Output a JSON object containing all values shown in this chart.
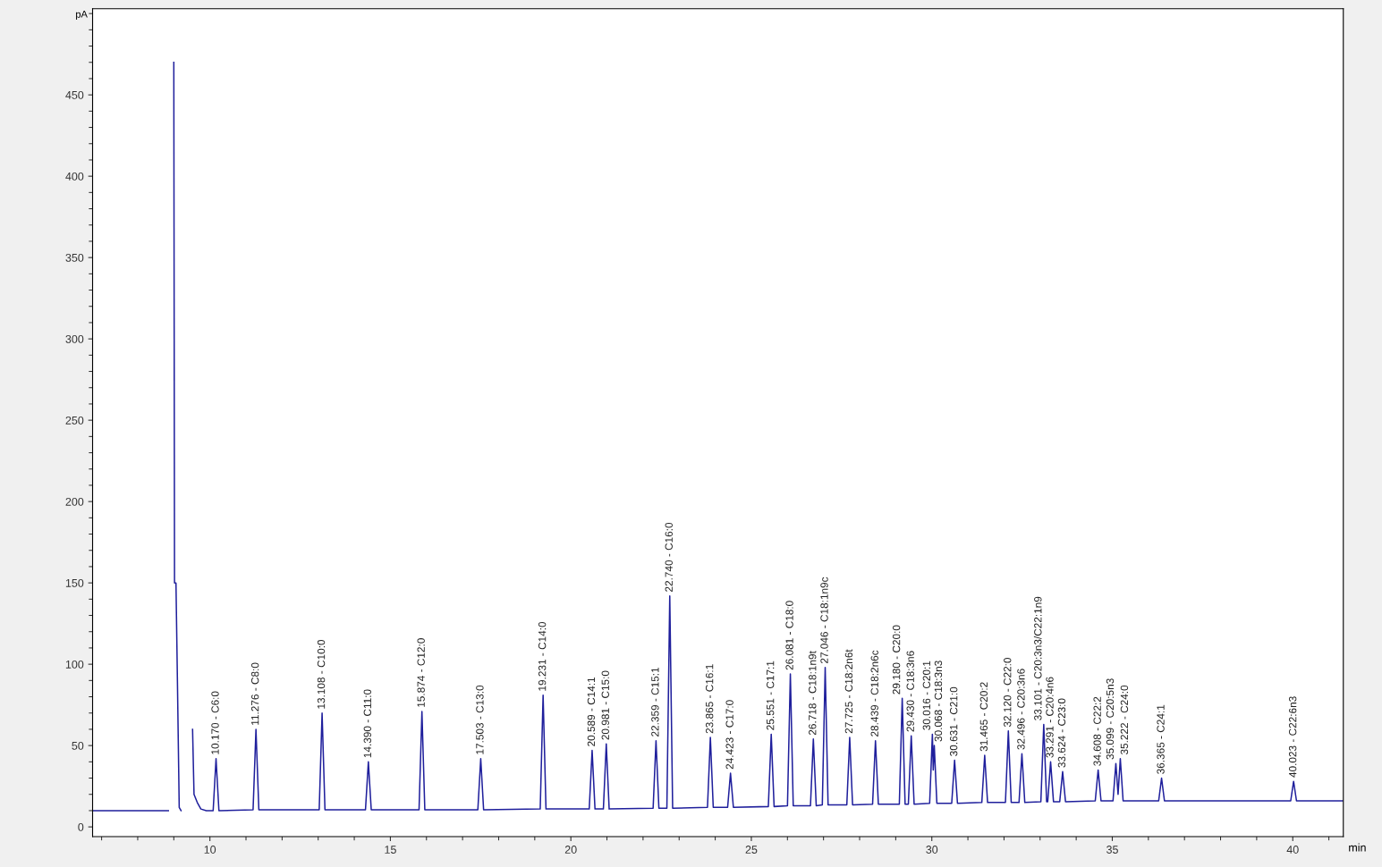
{
  "chart_data": {
    "type": "line",
    "xlabel": "min",
    "ylabel": "pA",
    "xlim": [
      6.75,
      41.4
    ],
    "ylim": [
      -6,
      503
    ],
    "xticks": [
      10,
      15,
      20,
      25,
      30,
      35,
      40
    ],
    "yticks": [
      0,
      50,
      100,
      150,
      200,
      250,
      300,
      350,
      400,
      450
    ],
    "grid": false,
    "legend": false,
    "marker": "none",
    "line_style": "solid",
    "series": [
      {
        "color": "#1f1f9c",
        "x": [
          6.75,
          8.85,
          8.93,
          8.98,
          9.0,
          9.02,
          9.06,
          9.1,
          9.15,
          9.2,
          9.25,
          9.5,
          9.52,
          9.56,
          9.65,
          9.75,
          9.9,
          10.09,
          10.17,
          10.25,
          11.196,
          11.276,
          11.356,
          13.028,
          13.108,
          13.188,
          14.31,
          14.39,
          14.47,
          15.794,
          15.874,
          15.954,
          17.423,
          17.503,
          17.583,
          19.151,
          19.231,
          19.311,
          20.509,
          20.589,
          20.669,
          20.901,
          20.981,
          21.061,
          22.279,
          22.359,
          22.439,
          22.66,
          22.74,
          22.82,
          23.785,
          23.865,
          23.945,
          24.343,
          24.423,
          24.503,
          25.471,
          25.551,
          25.631,
          26.001,
          26.081,
          26.161,
          26.638,
          26.718,
          26.798,
          26.966,
          27.046,
          27.126,
          27.645,
          27.725,
          27.805,
          28.359,
          28.439,
          28.519,
          29.1,
          29.18,
          29.26,
          29.35,
          29.43,
          29.51,
          29.94,
          30.016,
          30.04,
          30.068,
          30.14,
          30.551,
          30.631,
          30.711,
          31.385,
          31.465,
          31.545,
          32.04,
          32.12,
          32.2,
          32.416,
          32.496,
          32.576,
          33.021,
          33.101,
          33.181,
          33.211,
          33.291,
          33.371,
          33.544,
          33.624,
          33.704,
          34.528,
          34.608,
          34.688,
          35.02,
          35.099,
          35.16,
          35.222,
          35.3,
          36.285,
          36.365,
          36.445,
          39.943,
          40.023,
          40.103,
          41.4
        ],
        "values": [
          10,
          10,
          null,
          null,
          470,
          150,
          150,
          90,
          12,
          10,
          null,
          null,
          60,
          20,
          15,
          11,
          10,
          10,
          42,
          10,
          10.5,
          60,
          10.5,
          10.5,
          70,
          10.5,
          10.5,
          40,
          10.5,
          10.5,
          71,
          10.5,
          10.5,
          42,
          10.5,
          11,
          81,
          11,
          11,
          47,
          11,
          11,
          51,
          11,
          11.5,
          53,
          11.5,
          11.5,
          142,
          11.5,
          12,
          55,
          12,
          12,
          33,
          12,
          12.5,
          57,
          12.5,
          13,
          94,
          13,
          13,
          54,
          13,
          13.5,
          98,
          13.5,
          13.5,
          55,
          13.5,
          14,
          53,
          14,
          14,
          79,
          14,
          14,
          56,
          14,
          14.5,
          57,
          35,
          50,
          14.5,
          14.5,
          41,
          14.5,
          15,
          44,
          15,
          15,
          59,
          15,
          15,
          45,
          15,
          15.5,
          63,
          15.5,
          15.5,
          40,
          15.5,
          15.5,
          34,
          15.5,
          16,
          35,
          16,
          16,
          39,
          20,
          42,
          16,
          16,
          30,
          16,
          16,
          28,
          16,
          16
        ]
      }
    ],
    "annotations": [
      {
        "text": "10.170 - C6:0",
        "x": 10.17,
        "y": 42
      },
      {
        "text": "11.276 - C8:0",
        "x": 11.276,
        "y": 60
      },
      {
        "text": "13.108 - C10:0",
        "x": 13.108,
        "y": 70
      },
      {
        "text": "14.390 - C11:0",
        "x": 14.39,
        "y": 40
      },
      {
        "text": "15.874 - C12:0",
        "x": 15.874,
        "y": 71
      },
      {
        "text": "17.503 - C13:0",
        "x": 17.503,
        "y": 42
      },
      {
        "text": "19.231 - C14:0",
        "x": 19.231,
        "y": 81
      },
      {
        "text": "20.589 - C14:1",
        "x": 20.589,
        "y": 47
      },
      {
        "text": "20.981 - C15:0",
        "x": 20.981,
        "y": 51
      },
      {
        "text": "22.359 - C15:1",
        "x": 22.359,
        "y": 53
      },
      {
        "text": "22.740 - C16:0",
        "x": 22.74,
        "y": 142
      },
      {
        "text": "23.865 - C16:1",
        "x": 23.865,
        "y": 55
      },
      {
        "text": "24.423 - C17:0",
        "x": 24.423,
        "y": 33
      },
      {
        "text": "25.551 - C17:1",
        "x": 25.551,
        "y": 57
      },
      {
        "text": "26.081 - C18:0",
        "x": 26.081,
        "y": 94
      },
      {
        "text": "26.718 - C18:1n9t",
        "x": 26.718,
        "y": 54
      },
      {
        "text": "27.046 - C18:1n9c",
        "x": 27.046,
        "y": 98
      },
      {
        "text": "27.725 - C18:2n6t",
        "x": 27.725,
        "y": 55
      },
      {
        "text": "28.439 - C18:2n6c",
        "x": 28.439,
        "y": 53
      },
      {
        "text": "29.180 - C20:0",
        "x": 29.18,
        "y": 79
      },
      {
        "text": "29.430 - C18:3n6",
        "x": 29.43,
        "y": 56
      },
      {
        "text": "30.016 - C20:1",
        "x": 30.016,
        "y": 57
      },
      {
        "text": "30.068 - C18:3n3",
        "x": 30.068,
        "y": 50
      },
      {
        "text": "30.631 - C21:0",
        "x": 30.631,
        "y": 41
      },
      {
        "text": "31.465 - C20:2",
        "x": 31.465,
        "y": 44
      },
      {
        "text": "32.120 - C22:0",
        "x": 32.12,
        "y": 59
      },
      {
        "text": "32.496 - C20:3n6",
        "x": 32.496,
        "y": 45
      },
      {
        "text": "33.101 - C20:3n3/C22:1n9",
        "x": 33.101,
        "y": 63
      },
      {
        "text": "33.291 - C20:4n6",
        "x": 33.291,
        "y": 40
      },
      {
        "text": "33.624 - C23:0",
        "x": 33.624,
        "y": 34
      },
      {
        "text": "34.608 - C22:2",
        "x": 34.608,
        "y": 35
      },
      {
        "text": "35.099 - C20:5n3",
        "x": 35.099,
        "y": 39
      },
      {
        "text": "35.222 - C24:0",
        "x": 35.222,
        "y": 42
      },
      {
        "text": "36.365 - C24:1",
        "x": 36.365,
        "y": 30
      },
      {
        "text": "40.023 - C22:6n3",
        "x": 40.023,
        "y": 28
      }
    ]
  }
}
